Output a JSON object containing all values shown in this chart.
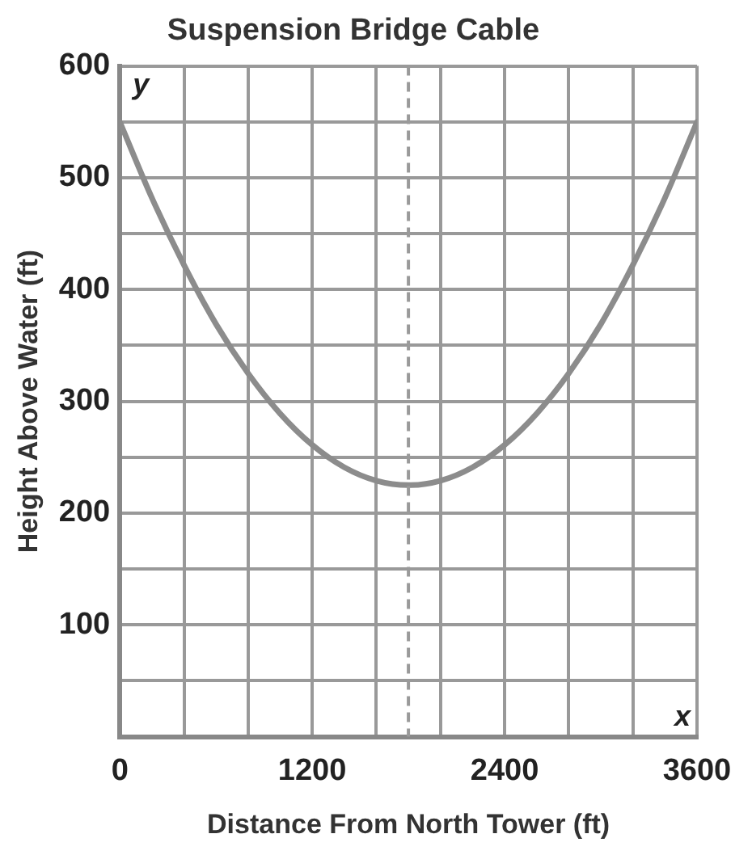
{
  "chart_data": {
    "type": "line",
    "title": "Suspension Bridge Cable",
    "xlabel": "Distance From North Tower (ft)",
    "ylabel": "Height Above Water (ft)",
    "x": [
      0,
      200,
      400,
      600,
      800,
      1000,
      1200,
      1400,
      1600,
      1800,
      2000,
      2200,
      2400,
      2600,
      2800,
      3000,
      3200,
      3400,
      3600
    ],
    "series": [
      {
        "color": "#8c8c8c",
        "values": [
          550,
          482,
          422,
          369,
          325,
          289,
          261,
          241,
          229,
          225,
          229,
          241,
          261,
          289,
          325,
          369,
          422,
          482,
          550
        ]
      }
    ],
    "xlim": [
      0,
      3600
    ],
    "ylim": [
      0,
      600
    ],
    "xticks": [
      0,
      {
        "value": 400,
        "label": null
      },
      {
        "value": 800,
        "label": null
      },
      1200,
      {
        "value": 1600,
        "label": null
      },
      {
        "value": 2000,
        "label": null
      },
      2400,
      {
        "value": 2800,
        "label": null
      },
      {
        "value": 3200,
        "label": null
      },
      3600
    ],
    "yticks": [
      {
        "value": 0,
        "label": null
      },
      {
        "value": 50,
        "label": null
      },
      100,
      {
        "value": 150,
        "label": null
      },
      200,
      {
        "value": 250,
        "label": null
      },
      300,
      {
        "value": 350,
        "label": null
      },
      400,
      {
        "value": 450,
        "label": null
      },
      500,
      {
        "value": 550,
        "label": null
      },
      600
    ],
    "ref_lines": [
      {
        "axis": "x",
        "value": 1800,
        "color": "#9a9a9a",
        "line_style": "dashed"
      }
    ],
    "annotations": [
      "y",
      "x"
    ],
    "grid": true,
    "marker": "none",
    "line_style": "solid",
    "legend": false
  }
}
